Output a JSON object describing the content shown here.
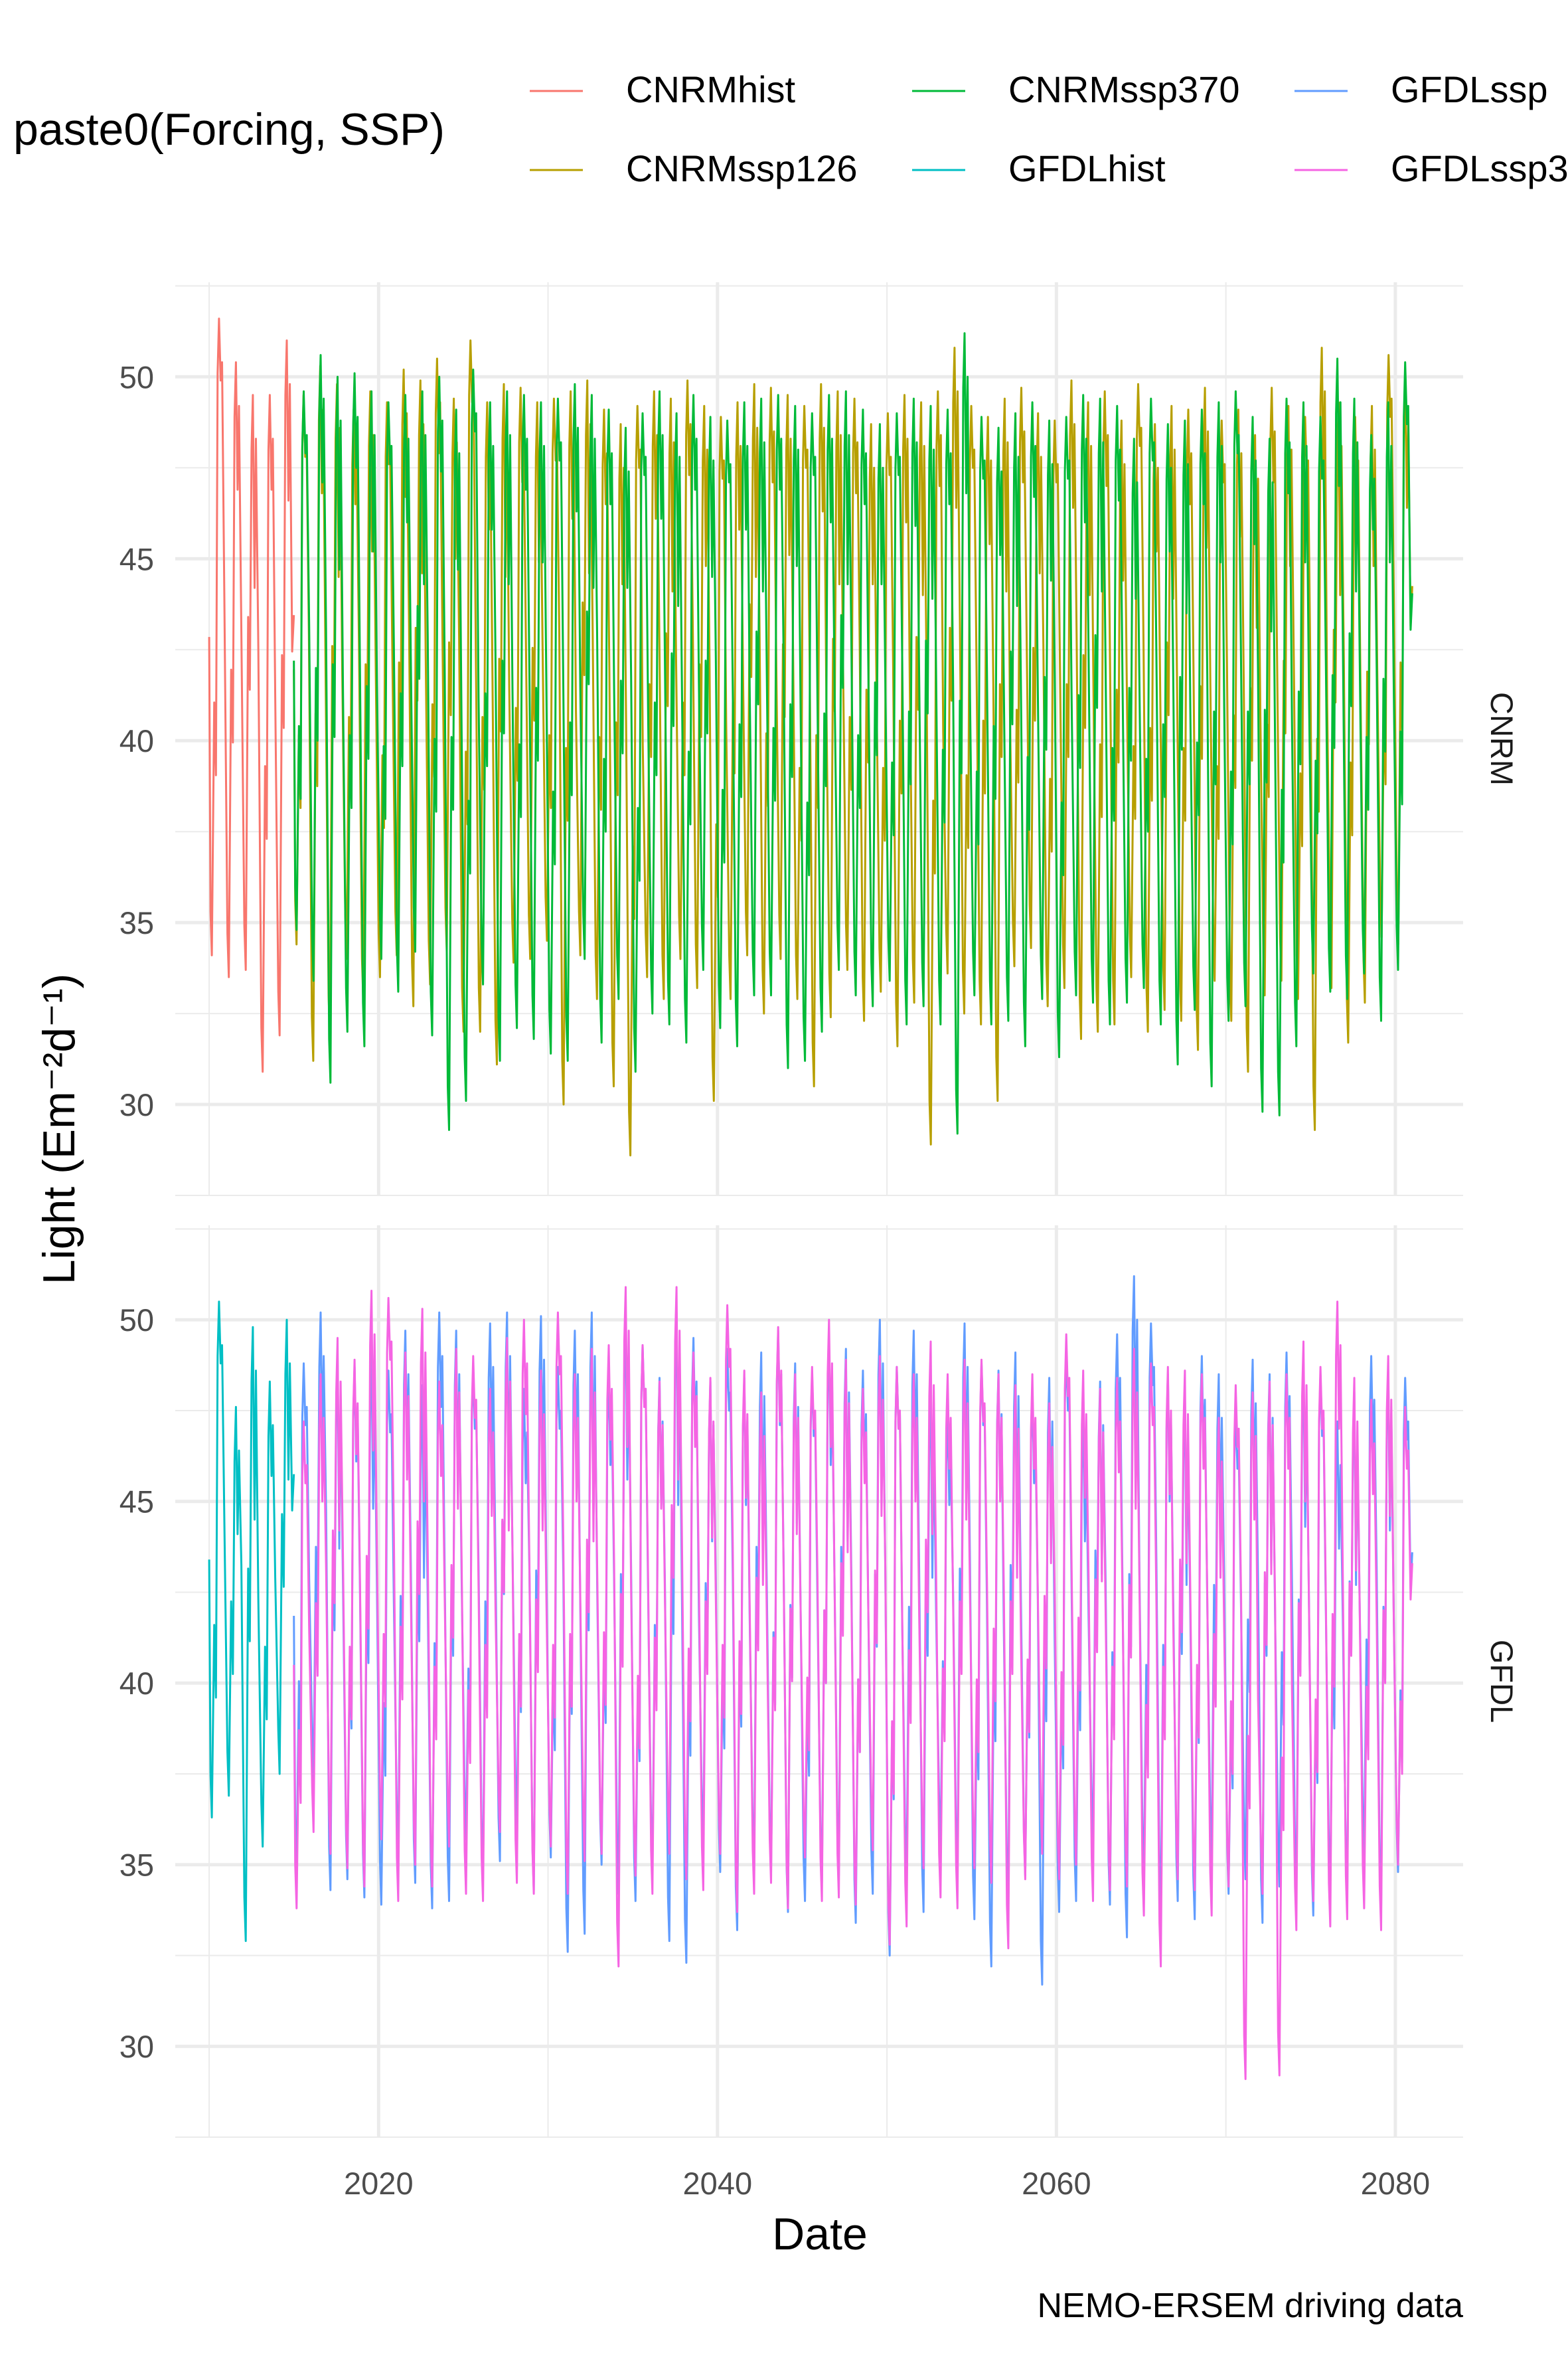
{
  "chart_data": {
    "type": "line",
    "xlabel": "Date",
    "ylabel": "Light (Em⁻²d⁻¹)",
    "caption": "NEMO-ERSEM driving data",
    "legend": {
      "title": "paste0(Forcing, SSP)",
      "position": "top",
      "entries": [
        {
          "name": "CNRMhist",
          "color": "#F8766D"
        },
        {
          "name": "CNRMssp126",
          "color": "#B79F00"
        },
        {
          "name": "CNRMssp370",
          "color": "#00BA38"
        },
        {
          "name": "GFDLhist",
          "color": "#00BFC4"
        },
        {
          "name": "GFDLssp",
          "color": "#619CFF"
        },
        {
          "name": "GFDLssp3",
          "color": "#F564E3"
        }
      ]
    },
    "x_ticks": [
      "2020",
      "2040",
      "2060",
      "2080"
    ],
    "x_tick_values": [
      2020,
      2040,
      2060,
      2080
    ],
    "xlim": [
      2008,
      2084
    ],
    "y_ticks": [
      "30",
      "35",
      "40",
      "45",
      "50"
    ],
    "y_tick_values": [
      30,
      35,
      40,
      45,
      50
    ],
    "grid": true,
    "facets": [
      {
        "label": "CNRM",
        "ylim": [
          27.5,
          52.6
        ],
        "series": [
          {
            "name": "CNRMhist",
            "color": "#F8766D",
            "x_start": 2010,
            "x_end": 2015,
            "peaks": [
              51.6,
              50.4,
              49.5,
              49.5,
              51.0
            ],
            "troughs": [
              34.1,
              33.5,
              33.7,
              30.9,
              31.9
            ]
          },
          {
            "name": "CNRMssp126",
            "color": "#B79F00",
            "x_start": 2015,
            "x_end": 2081,
            "peaks": [
              49.5,
              50.3,
              49.8,
              49.1,
              49.6,
              49.3,
              50.2,
              49.9,
              50.5,
              49.4,
              51.0,
              49.3,
              49.8,
              49.7,
              49.3,
              49.4,
              49.6,
              49.9,
              49.1,
              48.7,
              49.2,
              49.6,
              49.4,
              49.9,
              49.2,
              48.9,
              49.3,
              49.8,
              49.7,
              49.5,
              49.2,
              49.8,
              49.6,
              49.4,
              48.7,
              49.0,
              49.5,
              49.3,
              49.6,
              50.8,
              49.2,
              48.9,
              49.4,
              49.7,
              49.0,
              48.8,
              49.9,
              49.3,
              49.6,
              48.8,
              49.8,
              48.7,
              49.2,
              49.1,
              49.7,
              48.8,
              49.1,
              48.4,
              49.7,
              49.2,
              48.9,
              50.8,
              49.3,
              48.9,
              49.2,
              50.6,
              49.9
            ],
            "troughs": [
              34.4,
              31.2,
              31.8,
              34.0,
              32.8,
              33.5,
              34.1,
              32.7,
              33.3,
              34.2,
              32.0,
              32.0,
              31.1,
              33.9,
              34.0,
              34.5,
              30.0,
              34.1,
              32.9,
              30.5,
              28.6,
              33.5,
              32.9,
              34.0,
              33.2,
              30.1,
              32.9,
              34.1,
              32.5,
              34.0,
              32.9,
              30.5,
              32.4,
              33.7,
              32.3,
              33.1,
              31.6,
              32.8,
              28.9,
              33.6,
              32.5,
              32.2,
              30.1,
              33.8,
              34.3,
              32.7,
              33.2,
              31.8,
              32.0,
              32.2,
              33.5,
              32.0,
              32.6,
              32.3,
              31.5,
              33.4,
              32.3,
              30.9,
              33.0,
              33.4,
              32.9,
              29.3,
              33.2,
              31.7,
              32.8,
              34.6
            ]
          },
          {
            "name": "CNRMssp370",
            "color": "#00BA38",
            "x_start": 2015,
            "x_end": 2081,
            "peaks": [
              49.6,
              50.6,
              50.0,
              50.1,
              49.6,
              49.3,
              49.5,
              49.6,
              50.0,
              49.1,
              50.2,
              49.3,
              49.6,
              49.5,
              49.3,
              49.4,
              49.8,
              49.5,
              49.1,
              48.6,
              49.0,
              49.6,
              49.0,
              49.5,
              48.9,
              48.8,
              49.3,
              49.4,
              49.5,
              49.2,
              49.0,
              49.5,
              49.6,
              49.1,
              48.7,
              49.0,
              49.4,
              49.2,
              49.1,
              51.2,
              48.9,
              48.6,
              49.0,
              49.3,
              48.8,
              48.9,
              49.5,
              49.4,
              49.2,
              48.3,
              49.4,
              48.7,
              48.8,
              49.1,
              49.3,
              49.6,
              48.9,
              48.3,
              49.4,
              49.3,
              48.9,
              50.5,
              49.4,
              48.4,
              49.3,
              50.4
            ],
            "troughs": [
              34.8,
              33.4,
              30.6,
              32.0,
              31.6,
              34.0,
              33.1,
              34.2,
              31.9,
              29.3,
              30.1,
              33.3,
              31.2,
              32.1,
              31.8,
              31.4,
              31.2,
              34.0,
              31.7,
              32.9,
              30.9,
              32.5,
              32.2,
              31.7,
              33.7,
              32.1,
              31.6,
              33.0,
              33.0,
              31.0,
              31.2,
              32.0,
              33.7,
              33.0,
              32.7,
              33.4,
              32.2,
              32.7,
              32.2,
              29.2,
              33.0,
              32.2,
              32.3,
              31.6,
              32.9,
              31.3,
              33.0,
              32.8,
              32.2,
              32.8,
              33.2,
              32.2,
              31.1,
              32.6,
              30.5,
              32.3,
              32.7,
              29.8,
              29.7,
              31.6,
              33.6,
              33.1,
              32.9,
              33.6,
              32.3,
              33.7
            ]
          }
        ]
      },
      {
        "label": "GFDL",
        "ylim": [
          27.5,
          52.6
        ],
        "series": [
          {
            "name": "GFDLhist",
            "color": "#00BFC4",
            "x_start": 2010,
            "x_end": 2015,
            "peaks": [
              50.5,
              47.6,
              49.8,
              48.3,
              50.0
            ],
            "troughs": [
              36.3,
              36.9,
              32.9,
              35.5,
              37.5
            ]
          },
          {
            "name": "GFDLssp",
            "color": "#619CFF",
            "x_start": 2015,
            "x_end": 2081,
            "peaks": [
              48.8,
              50.2,
              49.0,
              48.7,
              49.2,
              48.6,
              49.7,
              48.2,
              50.2,
              49.7,
              48.7,
              49.9,
              50.2,
              48.1,
              50.1,
              48.7,
              49.7,
              50.2,
              48.6,
              50.0,
              49.3,
              48.4,
              50.2,
              49.5,
              48.3,
              49.2,
              48.4,
              49.1,
              49.7,
              48.8,
              48.5,
              49.5,
              49.2,
              48.6,
              50.0,
              48.7,
              49.7,
              48.2,
              47.5,
              49.9,
              48.8,
              48.6,
              49.1,
              48.1,
              48.4,
              49.2,
              47.4,
              48.3,
              49.6,
              51.2,
              49.9,
              48.5,
              48.0,
              49.0,
              48.5,
              47.6,
              48.9,
              48.5,
              49.1,
              48.7,
              48.5,
              47.2,
              48.0,
              49.0,
              48.6,
              48.4
            ],
            "troughs": [
              34.9,
              37.3,
              34.3,
              34.6,
              34.1,
              33.9,
              35.1,
              34.5,
              33.8,
              34.0,
              35.7,
              34.6,
              35.1,
              36.1,
              34.3,
              35.2,
              32.6,
              33.1,
              35.0,
              34.2,
              34.0,
              34.8,
              32.9,
              32.3,
              35.4,
              34.8,
              33.2,
              34.8,
              34.9,
              33.7,
              34.0,
              34.5,
              34.7,
              33.4,
              34.2,
              32.5,
              34.5,
              33.7,
              35.5,
              34.6,
              33.5,
              32.2,
              33.8,
              34.7,
              31.7,
              33.7,
              34.0,
              35.4,
              33.9,
              33.0,
              34.7,
              33.6,
              34.0,
              33.5,
              35.1,
              34.2,
              34.6,
              33.4,
              34.4,
              34.1,
              33.6,
              34.3,
              34.0,
              35.2,
              33.8,
              34.8
            ]
          },
          {
            "name": "GFDLssp3",
            "color": "#F564E3",
            "x_start": 2015,
            "x_end": 2081,
            "peaks": [
              47.2,
              48.5,
              49.5,
              48.9,
              50.8,
              50.6,
              49.1,
              50.3,
              48.3,
              49.2,
              49.0,
              48.1,
              49.5,
              50.0,
              48.6,
              50.2,
              48.5,
              49.2,
              49.3,
              50.9,
              49.3,
              48.3,
              50.9,
              49.1,
              48.4,
              50.4,
              48.6,
              48.0,
              49.8,
              48.5,
              48.7,
              50.0,
              48.9,
              48.1,
              49.0,
              48.7,
              48.5,
              49.4,
              48.5,
              48.9,
              48.9,
              48.5,
              48.2,
              48.5,
              47.7,
              49.6,
              48.6,
              48.1,
              48.4,
              49.2,
              48.8,
              48.7,
              48.6,
              48.5,
              47.3,
              48.2,
              48.0,
              48.3,
              48.5,
              49.4,
              48.7,
              50.5,
              48.4,
              47.8,
              49.0,
              47.6
            ],
            "troughs": [
              33.8,
              35.9,
              35.3,
              34.9,
              34.4,
              35.7,
              34.0,
              35.0,
              34.4,
              35.5,
              34.2,
              34.0,
              35.9,
              34.5,
              34.2,
              35.5,
              34.2,
              35.1,
              35.3,
              32.2,
              34.7,
              34.2,
              35.3,
              34.6,
              34.3,
              35.3,
              33.7,
              34.2,
              34.5,
              33.8,
              35.2,
              34.0,
              34.1,
              33.9,
              35.4,
              32.8,
              33.3,
              34.9,
              34.1,
              33.8,
              34.9,
              34.5,
              32.7,
              34.6,
              35.3,
              34.6,
              35.0,
              34.0,
              34.3,
              34.4,
              33.6,
              32.2,
              34.6,
              34.3,
              33.6,
              34.4,
              29.1,
              34.2,
              29.2,
              33.2,
              34.0,
              33.3,
              33.5,
              33.8,
              33.2,
              35.0
            ]
          }
        ]
      }
    ]
  }
}
